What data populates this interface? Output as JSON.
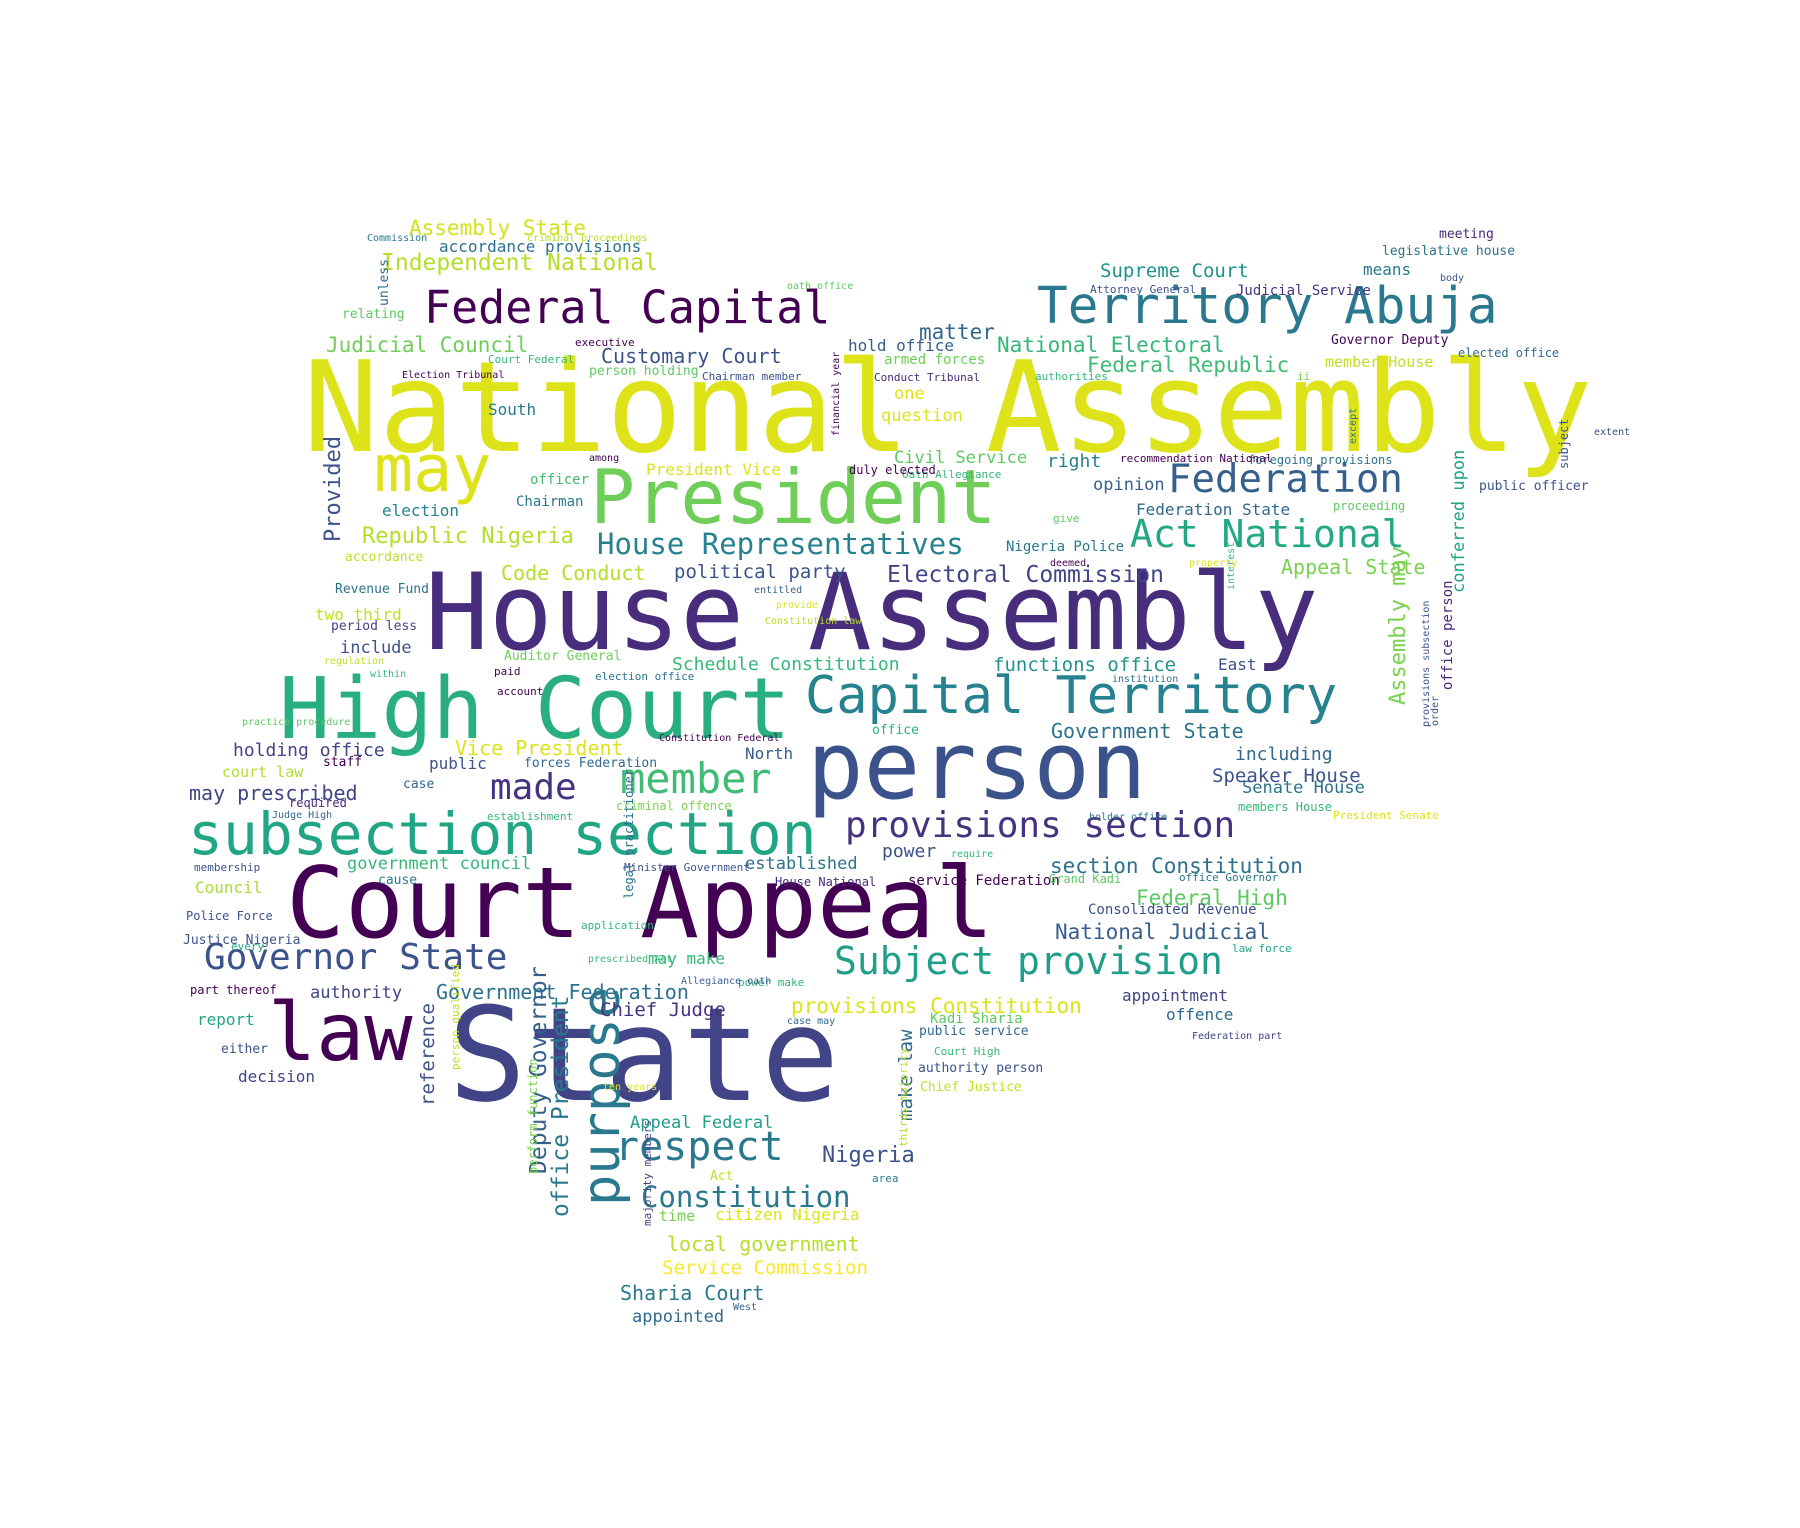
{
  "palette": [
    "#440154",
    "#482878",
    "#3e4a89",
    "#31688e",
    "#26828e",
    "#1f9e89",
    "#35b779",
    "#6ece58",
    "#b5de2b",
    "#fde725"
  ],
  "words": [
    {
      "t": "National Assembly",
      "c": "#dde318"
    },
    {
      "t": "House Assembly",
      "c": "#472d7b"
    },
    {
      "t": "State",
      "c": "#414487"
    },
    {
      "t": "Court Appeal",
      "c": "#440154"
    },
    {
      "t": "person",
      "c": "#3b528b"
    },
    {
      "t": "High Court",
      "c": "#29af7f"
    },
    {
      "t": "President",
      "c": "#6ece58"
    },
    {
      "t": "law",
      "c": "#440154"
    },
    {
      "t": "may",
      "c": "#dde318"
    },
    {
      "t": "subsection section",
      "c": "#21a685"
    },
    {
      "t": "Capital Territory",
      "c": "#26828e"
    },
    {
      "t": "Territory Abuja",
      "c": "#2a788e"
    },
    {
      "t": "Federal Capital",
      "c": "#440154"
    },
    {
      "t": "purpose",
      "c": "#2a788e"
    },
    {
      "t": "Subject provision",
      "c": "#1f9e89"
    },
    {
      "t": "Federation",
      "c": "#355f8d"
    },
    {
      "t": "Act National",
      "c": "#22a884"
    },
    {
      "t": "member",
      "c": "#3fbc73"
    },
    {
      "t": "respect",
      "c": "#2a788e"
    },
    {
      "t": "provisions section",
      "c": "#46337f"
    },
    {
      "t": "Governor State",
      "c": "#3b528b"
    },
    {
      "t": "made",
      "c": "#46337f"
    },
    {
      "t": "House Representatives",
      "c": "#26828e"
    },
    {
      "t": "Constitution",
      "c": "#2a788e"
    },
    {
      "t": "Deputy Governor",
      "c": "#355f8d"
    },
    {
      "t": "office President",
      "c": "#2a788e"
    },
    {
      "t": "Provided",
      "c": "#3b528b"
    },
    {
      "t": "Assembly may",
      "c": "#7ad151"
    },
    {
      "t": "Electoral Commission",
      "c": "#414487"
    },
    {
      "t": "Republic Nigeria",
      "c": "#b5de2b"
    },
    {
      "t": "Independent National",
      "c": "#b5de2b"
    },
    {
      "t": "Judicial Council",
      "c": "#6ece58"
    },
    {
      "t": "National Electoral",
      "c": "#35b779"
    },
    {
      "t": "Federal Republic",
      "c": "#3fbc73"
    },
    {
      "t": "Customary Court",
      "c": "#3b528b"
    },
    {
      "t": "Assembly State",
      "c": "#d2e21b"
    },
    {
      "t": "Supreme Court",
      "c": "#20928c"
    },
    {
      "t": "matter",
      "c": "#31688e"
    },
    {
      "t": "Nigeria",
      "c": "#3b528b"
    },
    {
      "t": "Code Conduct",
      "c": "#b5de2b"
    },
    {
      "t": "political party",
      "c": "#3b528b"
    },
    {
      "t": "Appeal State",
      "c": "#7ad151"
    },
    {
      "t": "conferred upon",
      "c": "#20a386"
    },
    {
      "t": "Schedule Constitution",
      "c": "#35b779"
    },
    {
      "t": "functions office",
      "c": "#21918c"
    },
    {
      "t": "Government State",
      "c": "#2c728e"
    },
    {
      "t": "section Constitution",
      "c": "#2c728e"
    },
    {
      "t": "National Judicial",
      "c": "#355f8d"
    },
    {
      "t": "Federal High",
      "c": "#5ec962"
    },
    {
      "t": "Vice President",
      "c": "#dde318"
    },
    {
      "t": "provisions Constitution",
      "c": "#dde318"
    },
    {
      "t": "Government Federation",
      "c": "#2c728e"
    },
    {
      "t": "Chief Judge",
      "c": "#46337f"
    },
    {
      "t": "Speaker House",
      "c": "#3b528b"
    },
    {
      "t": "Senate House",
      "c": "#2c728e"
    },
    {
      "t": "including",
      "c": "#31688e"
    },
    {
      "t": "may prescribed",
      "c": "#414487"
    },
    {
      "t": "holding office",
      "c": "#414487"
    },
    {
      "t": "local government",
      "c": "#b5de2b"
    },
    {
      "t": "Service Commission",
      "c": "#fde725"
    },
    {
      "t": "Sharia Court",
      "c": "#2a788e"
    },
    {
      "t": "appointed",
      "c": "#31688e"
    },
    {
      "t": "Appeal Federal",
      "c": "#1f9e89"
    },
    {
      "t": "citizen Nigeria",
      "c": "#dde318"
    },
    {
      "t": "reference",
      "c": "#3b528b"
    },
    {
      "t": "make law",
      "c": "#31688e"
    },
    {
      "t": "established",
      "c": "#2c728e"
    },
    {
      "t": "power",
      "c": "#3b528b"
    },
    {
      "t": "opinion",
      "c": "#355f8d"
    },
    {
      "t": "right",
      "c": "#26828e"
    },
    {
      "t": "Civil Service",
      "c": "#5ec962"
    },
    {
      "t": "hold office",
      "c": "#355f8d"
    },
    {
      "t": "one",
      "c": "#dde318"
    },
    {
      "t": "question",
      "c": "#dde318"
    },
    {
      "t": "South",
      "c": "#2a788e"
    },
    {
      "t": "election",
      "c": "#26828e"
    },
    {
      "t": "include",
      "c": "#3b528b"
    },
    {
      "t": "two third",
      "c": "#c2df23"
    },
    {
      "t": "North",
      "c": "#355f8d"
    },
    {
      "t": "public",
      "c": "#3b528b"
    },
    {
      "t": "means",
      "c": "#2a788e"
    },
    {
      "t": "Federation State",
      "c": "#31688e"
    },
    {
      "t": "government council",
      "c": "#35b779"
    },
    {
      "t": "Council",
      "c": "#a8db34"
    },
    {
      "t": "authority",
      "c": "#414487"
    },
    {
      "t": "report",
      "c": "#21a685"
    },
    {
      "t": "decision",
      "c": "#414487"
    },
    {
      "t": "appointment",
      "c": "#414487"
    },
    {
      "t": "offence",
      "c": "#31688e"
    },
    {
      "t": "office person",
      "c": "#482878"
    },
    {
      "t": "Consolidated Revenue",
      "c": "#3b528b"
    },
    {
      "t": "may make",
      "c": "#35b779"
    },
    {
      "t": "accordance provisions",
      "c": "#2c728e"
    },
    {
      "t": "unless",
      "c": "#31688e"
    },
    {
      "t": "court law",
      "c": "#b5de2b"
    },
    {
      "t": "Auditor General",
      "c": "#6ece58"
    },
    {
      "t": "President Vice",
      "c": "#dde318"
    },
    {
      "t": "officer",
      "c": "#3fbc73"
    },
    {
      "t": "Chairman",
      "c": "#2a788e"
    },
    {
      "t": "relating",
      "c": "#5ec962"
    },
    {
      "t": "Judicial Service",
      "c": "#46337f"
    },
    {
      "t": "legislative house",
      "c": "#2c728e"
    },
    {
      "t": "meeting",
      "c": "#482878"
    },
    {
      "t": "Governor Deputy",
      "c": "#440154"
    },
    {
      "t": "elected office",
      "c": "#31688e"
    },
    {
      "t": "armed forces",
      "c": "#6ece58"
    },
    {
      "t": "person holding",
      "c": "#5ec962"
    },
    {
      "t": "Revenue Fund",
      "c": "#2c728e"
    },
    {
      "t": "period less",
      "c": "#414487"
    },
    {
      "t": "accordance",
      "c": "#c2df23"
    },
    {
      "t": "Nigeria Police",
      "c": "#2a788e"
    },
    {
      "t": "proceeding",
      "c": "#5ec962"
    },
    {
      "t": "public officer",
      "c": "#3b528b"
    },
    {
      "t": "subject",
      "c": "#3b528b"
    },
    {
      "t": "East",
      "c": "#3b528b"
    },
    {
      "t": "office",
      "c": "#29af7f"
    },
    {
      "t": "legal practitioner",
      "c": "#2c728e"
    },
    {
      "t": "time",
      "c": "#7ad151"
    },
    {
      "t": "case",
      "c": "#31688e"
    },
    {
      "t": "staff",
      "c": "#440154"
    },
    {
      "t": "required",
      "c": "#482878"
    },
    {
      "t": "forces Federation",
      "c": "#31688e"
    },
    {
      "t": "service Federation",
      "c": "#440154"
    },
    {
      "t": "Kadi Sharia",
      "c": "#5ec962"
    },
    {
      "t": "public service",
      "c": "#31688e"
    },
    {
      "t": "authority person",
      "c": "#3b528b"
    },
    {
      "t": "Chief Justice",
      "c": "#c2df23"
    },
    {
      "t": "Act",
      "c": "#c2df23"
    },
    {
      "t": "perform function",
      "c": "#7ad151"
    },
    {
      "t": "majority members",
      "c": "#414487"
    },
    {
      "t": "thirds majority",
      "c": "#b5de2b"
    },
    {
      "t": "person qualified",
      "c": "#c2df23"
    },
    {
      "t": "Police Force",
      "c": "#3b528b"
    },
    {
      "t": "part thereof",
      "c": "#440154"
    },
    {
      "t": "Justice Nigeria",
      "c": "#3b528b"
    },
    {
      "t": "either",
      "c": "#3b528b"
    },
    {
      "t": "cause",
      "c": "#2a788e"
    },
    {
      "t": "House National",
      "c": "#482878"
    },
    {
      "t": "Grand Kadi",
      "c": "#5ec962"
    },
    {
      "t": "office Governor",
      "c": "#2c728e"
    },
    {
      "t": "Minister Government",
      "c": "#3b528b"
    },
    {
      "t": "membership",
      "c": "#3b528b"
    },
    {
      "t": "Judge High",
      "c": "#31688e"
    },
    {
      "t": "establishment",
      "c": "#35b779"
    },
    {
      "t": "criminal offence",
      "c": "#7ad151"
    },
    {
      "t": "members House",
      "c": "#35b779"
    },
    {
      "t": "President Senate",
      "c": "#dde318"
    },
    {
      "t": "require",
      "c": "#35b779"
    },
    {
      "t": "application",
      "c": "#35b779"
    },
    {
      "t": "prescribed Act",
      "c": "#35b779"
    },
    {
      "t": "every",
      "c": "#21a685"
    },
    {
      "t": "law force",
      "c": "#21a685"
    },
    {
      "t": "power make",
      "c": "#35b779"
    },
    {
      "t": "Allegiance oath",
      "c": "#355f8d"
    },
    {
      "t": "case may",
      "c": "#31688e"
    },
    {
      "t": "Court High",
      "c": "#35b779"
    },
    {
      "t": "Federation part",
      "c": "#414487"
    },
    {
      "t": "ten years",
      "c": "#dde318"
    },
    {
      "t": "area",
      "c": "#2a788e"
    },
    {
      "t": "West",
      "c": "#31688e"
    },
    {
      "t": "practice procedure",
      "c": "#5ec962"
    },
    {
      "t": "paid",
      "c": "#440154"
    },
    {
      "t": "account",
      "c": "#440154"
    },
    {
      "t": "within",
      "c": "#35b779"
    },
    {
      "t": "regulation",
      "c": "#c2df23"
    },
    {
      "t": "election office",
      "c": "#2c728e"
    },
    {
      "t": "Constitution Federal",
      "c": "#440154"
    },
    {
      "t": "Constitution law",
      "c": "#b5de2b"
    },
    {
      "t": "provide",
      "c": "#dde318"
    },
    {
      "t": "entitled",
      "c": "#355f8d"
    },
    {
      "t": "interest",
      "c": "#35b779"
    },
    {
      "t": "property",
      "c": "#dde318"
    },
    {
      "t": "deemed",
      "c": "#440154"
    },
    {
      "t": "give",
      "c": "#5ec962"
    },
    {
      "t": "institution",
      "c": "#2c728e"
    },
    {
      "t": "holder office",
      "c": "#2c728e"
    },
    {
      "t": "order",
      "c": "#3b528b"
    },
    {
      "t": "provisions subsection",
      "c": "#3b528b"
    },
    {
      "t": "foregoing provisions",
      "c": "#2c728e"
    },
    {
      "t": "recommendation National",
      "c": "#440154"
    },
    {
      "t": "Oath Allegiance",
      "c": "#35b779"
    },
    {
      "t": "duly elected",
      "c": "#440154"
    },
    {
      "t": "among",
      "c": "#440154"
    },
    {
      "t": "except",
      "c": "#2c728e"
    },
    {
      "t": "extent",
      "c": "#3b528b"
    },
    {
      "t": "body",
      "c": "#3b528b"
    },
    {
      "t": "Attorney General",
      "c": "#3b528b"
    },
    {
      "t": "oath office",
      "c": "#5ec962"
    },
    {
      "t": "member House",
      "c": "#c2df23"
    },
    {
      "t": "ii",
      "c": "#7ad151"
    },
    {
      "t": "authorities",
      "c": "#35b779"
    },
    {
      "t": "Conduct Tribunal",
      "c": "#482878"
    },
    {
      "t": "financial year",
      "c": "#440154"
    },
    {
      "t": "Chairman member",
      "c": "#3b528b"
    },
    {
      "t": "Court Federal",
      "c": "#35b779"
    },
    {
      "t": "executive",
      "c": "#440154"
    },
    {
      "t": "Election Tribunal",
      "c": "#440154"
    },
    {
      "t": "Commission",
      "c": "#2a788e"
    },
    {
      "t": "criminal proceedings",
      "c": "#b5de2b"
    },
    {
      "t": "appointment person",
      "c": "#440154"
    }
  ]
}
